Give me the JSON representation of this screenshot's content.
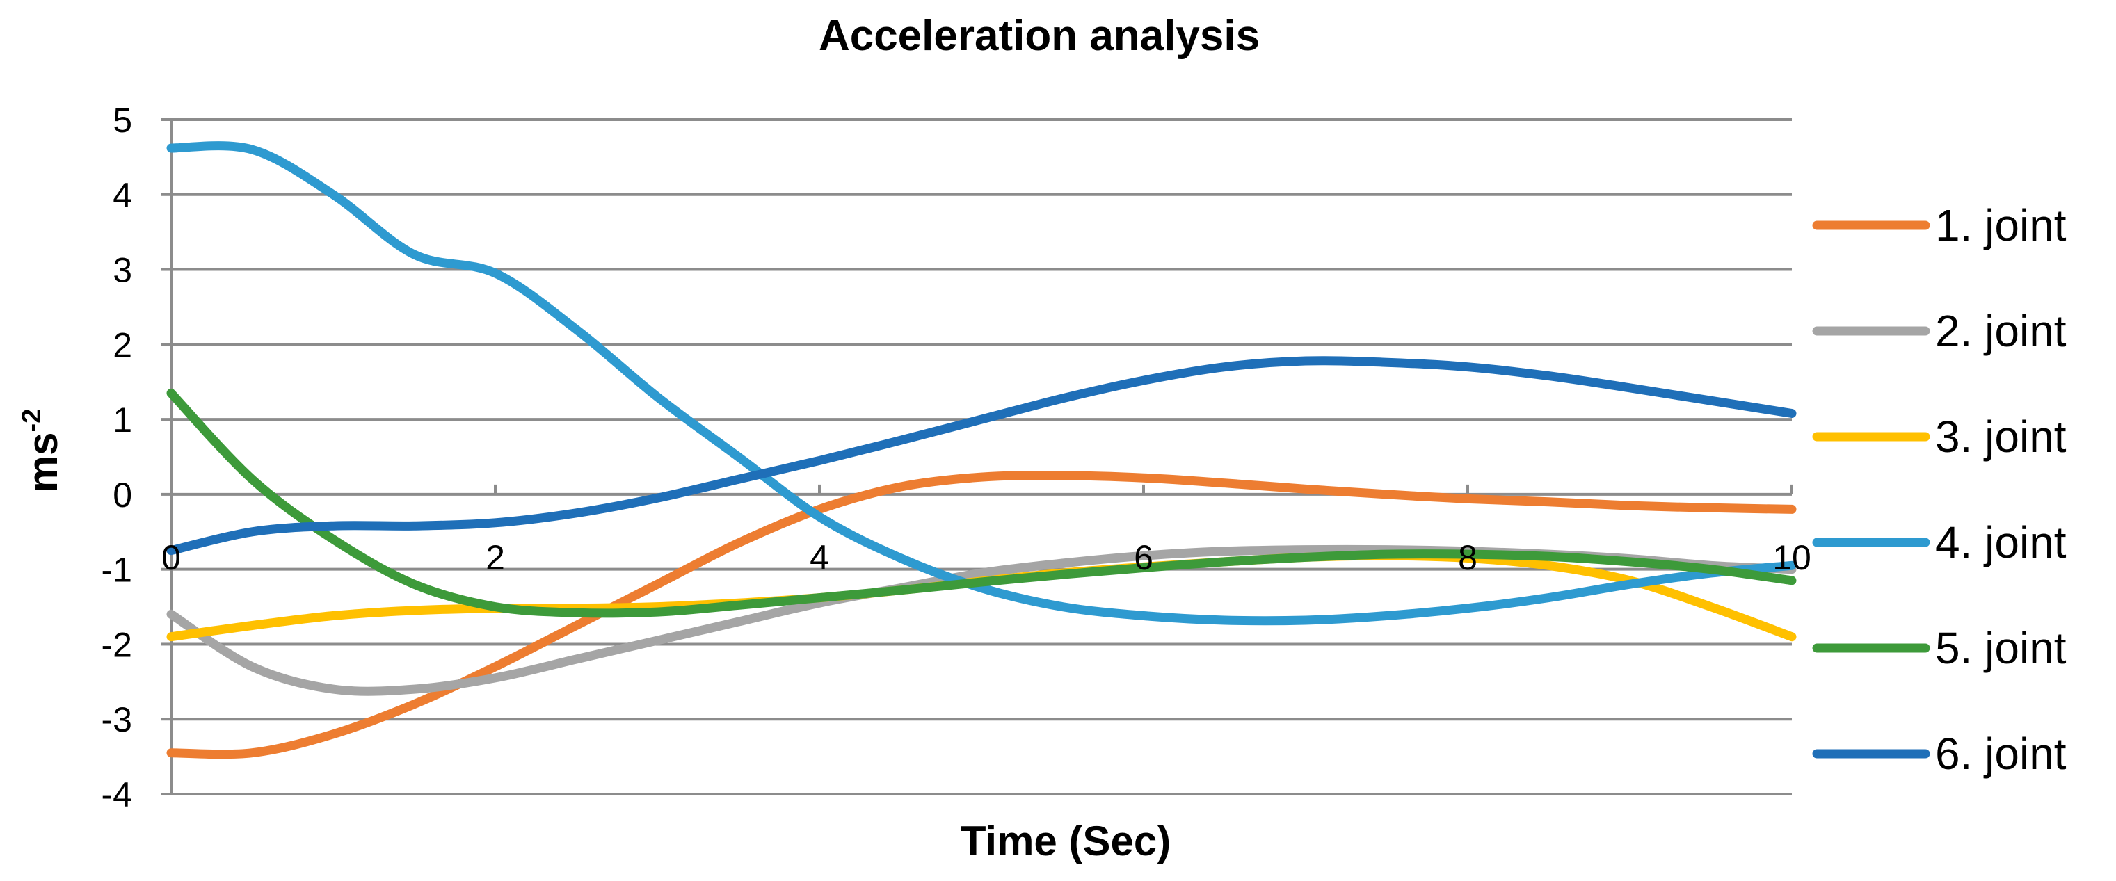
{
  "chart_data": {
    "type": "line",
    "title": "Acceleration analysis",
    "xlabel": "Time (Sec)",
    "ylabel_base": "ms",
    "ylabel_exp": "-2",
    "xlim": [
      0,
      10
    ],
    "ylim": [
      -4,
      5
    ],
    "xticks": [
      0,
      2,
      4,
      6,
      8,
      10
    ],
    "yticks": [
      5,
      4,
      3,
      2,
      1,
      0,
      -1,
      -2,
      -3,
      -4
    ],
    "x_tick_labels": [
      "0",
      "2",
      "4",
      "6",
      "8",
      "10"
    ],
    "y_tick_labels": [
      "5",
      "4",
      "3",
      "2",
      "1",
      "0",
      "-1",
      "-2",
      "-3",
      "-4"
    ],
    "grid": "horizontal",
    "legend_position": "right",
    "x": [
      0,
      0.5,
      1,
      1.5,
      2,
      2.5,
      3,
      3.5,
      4,
      4.5,
      5,
      5.5,
      6,
      6.5,
      7,
      7.5,
      8,
      8.5,
      9,
      9.5,
      10
    ],
    "series": [
      {
        "name": "1. joint",
        "color": "#ED7D31",
        "values": [
          -3.45,
          -3.45,
          -3.2,
          -2.8,
          -2.3,
          -1.75,
          -1.2,
          -0.65,
          -0.2,
          0.1,
          0.23,
          0.25,
          0.22,
          0.15,
          0.07,
          0.0,
          -0.06,
          -0.1,
          -0.15,
          -0.18,
          -0.2
        ]
      },
      {
        "name": "2. joint",
        "color": "#A5A5A5",
        "values": [
          -1.6,
          -2.3,
          -2.6,
          -2.6,
          -2.45,
          -2.2,
          -1.95,
          -1.7,
          -1.45,
          -1.25,
          -1.05,
          -0.92,
          -0.82,
          -0.76,
          -0.74,
          -0.74,
          -0.76,
          -0.8,
          -0.86,
          -0.95,
          -1.0
        ]
      },
      {
        "name": "3. joint",
        "color": "#FFC000",
        "values": [
          -1.9,
          -1.75,
          -1.62,
          -1.55,
          -1.52,
          -1.52,
          -1.5,
          -1.45,
          -1.38,
          -1.28,
          -1.16,
          -1.05,
          -0.97,
          -0.9,
          -0.84,
          -0.82,
          -0.85,
          -0.95,
          -1.15,
          -1.5,
          -1.9
        ]
      },
      {
        "name": "4. joint",
        "color": "#2E9AD0",
        "values": [
          4.62,
          4.6,
          4.0,
          3.2,
          2.95,
          2.2,
          1.3,
          0.5,
          -0.3,
          -0.85,
          -1.25,
          -1.5,
          -1.62,
          -1.68,
          -1.68,
          -1.62,
          -1.52,
          -1.38,
          -1.2,
          -1.05,
          -0.95
        ]
      },
      {
        "name": "5. joint",
        "color": "#3D9A3A",
        "values": [
          1.35,
          0.2,
          -0.6,
          -1.2,
          -1.5,
          -1.58,
          -1.57,
          -1.48,
          -1.38,
          -1.28,
          -1.17,
          -1.07,
          -0.98,
          -0.9,
          -0.84,
          -0.8,
          -0.8,
          -0.83,
          -0.9,
          -1.0,
          -1.15
        ]
      },
      {
        "name": "6. joint",
        "color": "#1F6FB8",
        "values": [
          -0.75,
          -0.5,
          -0.42,
          -0.42,
          -0.38,
          -0.25,
          -0.05,
          0.2,
          0.45,
          0.72,
          1.0,
          1.28,
          1.52,
          1.7,
          1.78,
          1.76,
          1.7,
          1.58,
          1.42,
          1.25,
          1.08
        ]
      }
    ]
  }
}
